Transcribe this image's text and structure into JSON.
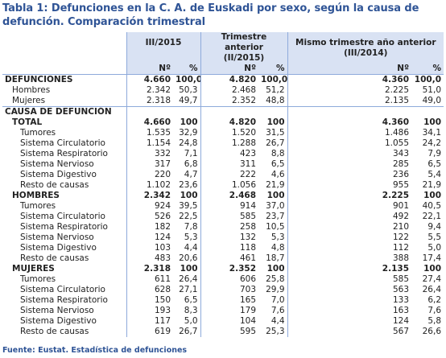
{
  "title": "Tabla 1: Defunciones en la C. A. de Euskadi por sexo, según la causa de defunción. Comparación trimestral",
  "headers": {
    "col1": "III/2015",
    "col2": "Trimestre anterior (II/2015)",
    "col3": "Mismo trimestre año anterior (III/2014)",
    "n": "Nº",
    "pct": "%"
  },
  "rows": [
    {
      "label": "DEFUNCIONES",
      "style": "section",
      "v": [
        "4.660",
        "100,0",
        "4.820",
        "100,0",
        "4.360",
        "100,0"
      ]
    },
    {
      "label": "Hombres",
      "style": "item1",
      "v": [
        "2.342",
        "50,3",
        "2.468",
        "51,2",
        "2.225",
        "51,0"
      ]
    },
    {
      "label": "Mujeres",
      "style": "item1",
      "v": [
        "2.318",
        "49,7",
        "2.352",
        "48,8",
        "2.135",
        "49,0"
      ]
    },
    {
      "label": "CAUSA DE DEFUNCIÓN",
      "style": "section",
      "v": [
        "",
        "",
        "",
        "",
        "",
        ""
      ]
    },
    {
      "label": "TOTAL",
      "style": "sub",
      "v": [
        "4.660",
        "100",
        "4.820",
        "100",
        "4.360",
        "100"
      ]
    },
    {
      "label": "Tumores",
      "style": "item",
      "v": [
        "1.535",
        "32,9",
        "1.520",
        "31,5",
        "1.486",
        "34,1"
      ]
    },
    {
      "label": "Sistema Circulatorio",
      "style": "item",
      "v": [
        "1.154",
        "24,8",
        "1.288",
        "26,7",
        "1.055",
        "24,2"
      ]
    },
    {
      "label": "Sistema Respiratorio",
      "style": "item",
      "v": [
        "332",
        "7,1",
        "423",
        "8,8",
        "343",
        "7,9"
      ]
    },
    {
      "label": "Sistema Nervioso",
      "style": "item",
      "v": [
        "317",
        "6,8",
        "311",
        "6,5",
        "285",
        "6,5"
      ]
    },
    {
      "label": "Sistema Digestivo",
      "style": "item",
      "v": [
        "220",
        "4,7",
        "222",
        "4,6",
        "236",
        "5,4"
      ]
    },
    {
      "label": "Resto de causas",
      "style": "item",
      "v": [
        "1.102",
        "23,6",
        "1.056",
        "21,9",
        "955",
        "21,9"
      ]
    },
    {
      "label": "HOMBRES",
      "style": "sub",
      "v": [
        "2.342",
        "100",
        "2.468",
        "100",
        "2.225",
        "100"
      ]
    },
    {
      "label": "Tumores",
      "style": "item",
      "v": [
        "924",
        "39,5",
        "914",
        "37,0",
        "901",
        "40,5"
      ]
    },
    {
      "label": "Sistema Circulatorio",
      "style": "item",
      "v": [
        "526",
        "22,5",
        "585",
        "23,7",
        "492",
        "22,1"
      ]
    },
    {
      "label": "Sistema Respiratorio",
      "style": "item",
      "v": [
        "182",
        "7,8",
        "258",
        "10,5",
        "210",
        "9,4"
      ]
    },
    {
      "label": "Sistema Nervioso",
      "style": "item",
      "v": [
        "124",
        "5,3",
        "132",
        "5,3",
        "122",
        "5,5"
      ]
    },
    {
      "label": "Sistema Digestivo",
      "style": "item",
      "v": [
        "103",
        "4,4",
        "118",
        "4,8",
        "112",
        "5,0"
      ]
    },
    {
      "label": "Resto de causas",
      "style": "item",
      "v": [
        "483",
        "20,6",
        "461",
        "18,7",
        "388",
        "17,4"
      ]
    },
    {
      "label": "MUJERES",
      "style": "sub",
      "v": [
        "2.318",
        "100",
        "2.352",
        "100",
        "2.135",
        "100"
      ]
    },
    {
      "label": "Tumores",
      "style": "item",
      "v": [
        "611",
        "26,4",
        "606",
        "25,8",
        "585",
        "27,4"
      ]
    },
    {
      "label": "Sistema Circulatorio",
      "style": "item",
      "v": [
        "628",
        "27,1",
        "703",
        "29,9",
        "563",
        "26,4"
      ]
    },
    {
      "label": "Sistema Respiratorio",
      "style": "item",
      "v": [
        "150",
        "6,5",
        "165",
        "7,0",
        "133",
        "6,2"
      ]
    },
    {
      "label": "Sistema Nervioso",
      "style": "item",
      "v": [
        "193",
        "8,3",
        "179",
        "7,6",
        "163",
        "7,6"
      ]
    },
    {
      "label": "Sistema Digestivo",
      "style": "item",
      "v": [
        "117",
        "5,0",
        "104",
        "4,4",
        "124",
        "5,8"
      ]
    },
    {
      "label": "Resto de causas",
      "style": "item",
      "v": [
        "619",
        "26,7",
        "595",
        "25,3",
        "567",
        "26,6"
      ]
    }
  ],
  "source": "Fuente: Eustat. Estadística de defunciones",
  "colors": {
    "title": "#2f5496",
    "header_bg": "#d9e2f3",
    "rule": "#8eaadb"
  }
}
